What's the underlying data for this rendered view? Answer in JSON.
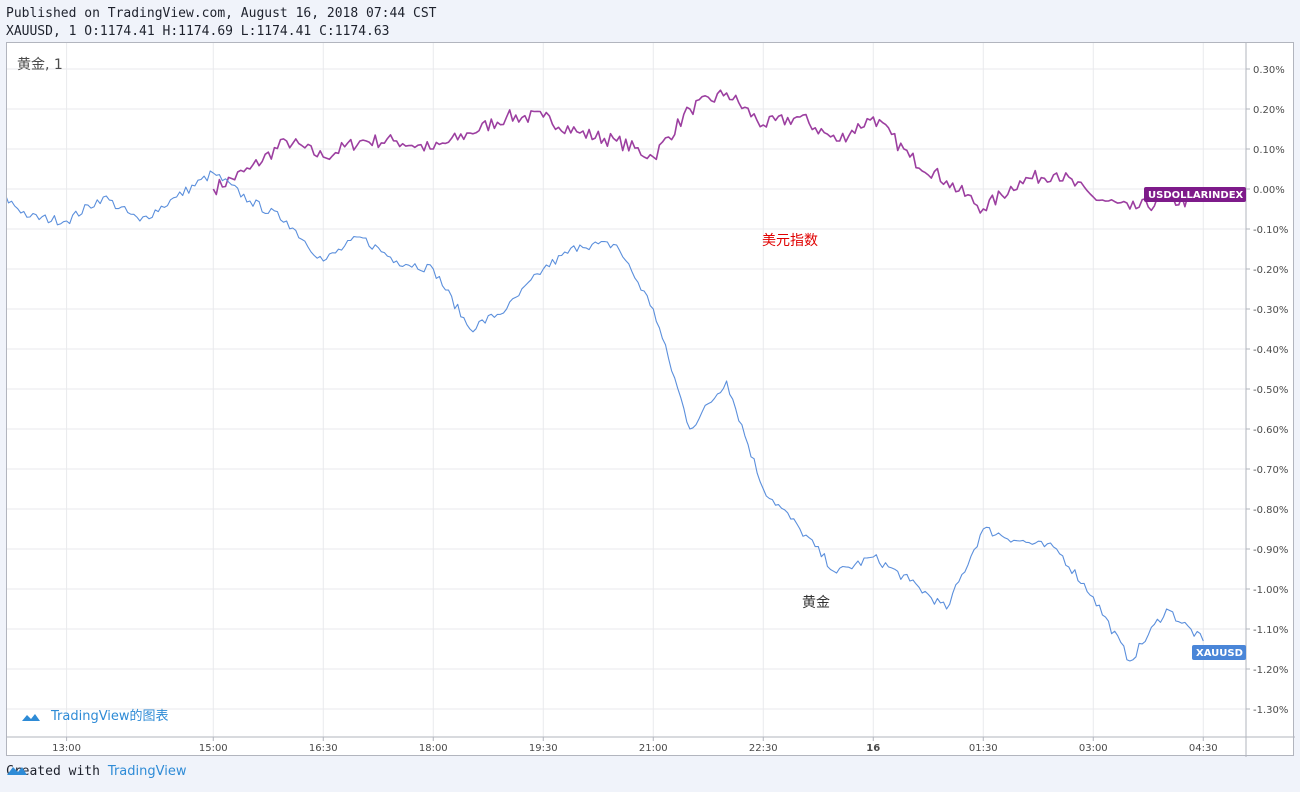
{
  "header": {
    "published": "Published on TradingView.com, August 16, 2018 07:44 CST",
    "ohlc": "XAUUSD, 1 O:1174.41 H:1174.69 L:1174.41 C:1174.63"
  },
  "pane_title": "黄金, 1",
  "watermark": "TradingView的图表",
  "footer": {
    "created_with": "Created with",
    "brand": "TradingView"
  },
  "colors": {
    "gold": "#5b8fdc",
    "usd": "#9c3fa0",
    "usd_tag": "#7e1b8a",
    "gold_tag": "#4a86d8",
    "usd_anno": "#e00000"
  },
  "chart_data": {
    "type": "line",
    "x_ticks": [
      "13:00",
      "15:00",
      "16:30",
      "18:00",
      "19:30",
      "21:00",
      "22:30",
      "16",
      "01:30",
      "03:00",
      "04:30"
    ],
    "y_ticks": [
      "0.30%",
      "0.20%",
      "0.10%",
      "0.00%",
      "-0.10%",
      "-0.20%",
      "-0.30%",
      "-0.40%",
      "-0.50%",
      "-0.60%",
      "-0.70%",
      "-0.80%",
      "-0.90%",
      "-1.00%",
      "-1.10%",
      "-1.20%",
      "-1.30%"
    ],
    "ylim": [
      -1.33,
      0.33
    ],
    "series": [
      {
        "name": "USDOLLARINDEX",
        "annotation": "美元指数",
        "x": [
          "15:00",
          "15:30",
          "16:00",
          "16:30",
          "17:00",
          "17:30",
          "18:00",
          "18:30",
          "19:00",
          "19:30",
          "20:00",
          "20:30",
          "21:00",
          "21:30",
          "22:00",
          "22:30",
          "23:00",
          "23:30",
          "00:00",
          "00:30",
          "01:00",
          "01:30",
          "02:00",
          "02:30",
          "03:00",
          "03:30",
          "04:00",
          "04:30"
        ],
        "values": [
          0.0,
          0.05,
          0.12,
          0.08,
          0.12,
          0.12,
          0.1,
          0.14,
          0.18,
          0.18,
          0.14,
          0.12,
          0.08,
          0.2,
          0.24,
          0.16,
          0.18,
          0.12,
          0.18,
          0.08,
          0.02,
          -0.05,
          0.02,
          0.04,
          -0.02,
          -0.05,
          -0.03,
          -0.03
        ]
      },
      {
        "name": "XAUUSD",
        "annotation": "黄金",
        "x": [
          "12:00",
          "12:30",
          "13:00",
          "13:30",
          "14:00",
          "14:30",
          "15:00",
          "15:30",
          "16:00",
          "16:30",
          "17:00",
          "17:30",
          "18:00",
          "18:30",
          "19:00",
          "19:30",
          "20:00",
          "20:30",
          "21:00",
          "21:30",
          "22:00",
          "22:30",
          "23:00",
          "23:30",
          "00:00",
          "00:30",
          "01:00",
          "01:30",
          "02:00",
          "02:30",
          "03:00",
          "03:30",
          "04:00",
          "04:30"
        ],
        "values": [
          0.0,
          -0.07,
          -0.08,
          -0.02,
          -0.08,
          -0.02,
          0.04,
          -0.03,
          -0.08,
          -0.18,
          -0.12,
          -0.18,
          -0.2,
          -0.35,
          -0.3,
          -0.2,
          -0.14,
          -0.14,
          -0.3,
          -0.6,
          -0.48,
          -0.75,
          -0.85,
          -0.96,
          -0.92,
          -0.98,
          -1.05,
          -0.85,
          -0.88,
          -0.9,
          -1.02,
          -1.18,
          -1.05,
          -1.13
        ]
      }
    ]
  }
}
